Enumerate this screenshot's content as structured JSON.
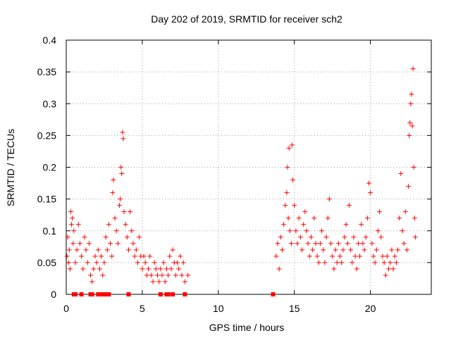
{
  "chart_data": {
    "type": "scatter",
    "title": "Day 202 of 2019, SRMTID for receiver sch2",
    "xlabel": "GPS time / hours",
    "ylabel": "SRMTID / TECUs",
    "xlim": [
      0,
      24
    ],
    "ylim": [
      0,
      0.4
    ],
    "x_ticks": [
      {
        "value": 0,
        "label": "0"
      },
      {
        "value": 5,
        "label": "5"
      },
      {
        "value": 10,
        "label": "10"
      },
      {
        "value": 15,
        "label": "15"
      },
      {
        "value": 20,
        "label": "20"
      }
    ],
    "y_ticks": [
      {
        "value": 0,
        "label": "0"
      },
      {
        "value": 0.05,
        "label": "0.05"
      },
      {
        "value": 0.1,
        "label": "0.1"
      },
      {
        "value": 0.15,
        "label": "0.15"
      },
      {
        "value": 0.2,
        "label": "0.2"
      },
      {
        "value": 0.25,
        "label": "0.25"
      },
      {
        "value": 0.3,
        "label": "0.3"
      },
      {
        "value": 0.35,
        "label": "0.35"
      },
      {
        "value": 0.4,
        "label": "0.4"
      }
    ],
    "grid": true,
    "marker": "+",
    "color": "#ff0000",
    "series": [
      {
        "name": "SRMTID",
        "points": [
          [
            0.05,
            0.06
          ],
          [
            0.1,
            0.09
          ],
          [
            0.15,
            0.05
          ],
          [
            0.2,
            0.07
          ],
          [
            0.25,
            0.04
          ],
          [
            0.3,
            0.13
          ],
          [
            0.35,
            0.11
          ],
          [
            0.4,
            0.12
          ],
          [
            0.45,
            0.08
          ],
          [
            0.5,
            0.1
          ],
          [
            0.6,
            0.05
          ],
          [
            0.7,
            0.07
          ],
          [
            0.8,
            0.11
          ],
          [
            0.9,
            0.08
          ],
          [
            1.0,
            0.06
          ],
          [
            1.1,
            0.04
          ],
          [
            1.2,
            0.09
          ],
          [
            1.3,
            0.07
          ],
          [
            1.4,
            0.05
          ],
          [
            1.5,
            0.08
          ],
          [
            1.6,
            0.03
          ],
          [
            1.7,
            0.02
          ],
          [
            1.8,
            0.04
          ],
          [
            1.9,
            0.06
          ],
          [
            2.0,
            0.05
          ],
          [
            2.1,
            0.07
          ],
          [
            2.2,
            0.04
          ],
          [
            2.3,
            0.06
          ],
          [
            2.4,
            0.03
          ],
          [
            2.5,
            0.05
          ],
          [
            2.6,
            0.09
          ],
          [
            2.7,
            0.07
          ],
          [
            2.8,
            0.11
          ],
          [
            2.9,
            0.08
          ],
          [
            3.0,
            0.06
          ],
          [
            3.05,
            0.16
          ],
          [
            3.1,
            0.18
          ],
          [
            3.2,
            0.12
          ],
          [
            3.3,
            0.1
          ],
          [
            3.4,
            0.08
          ],
          [
            3.5,
            0.14
          ],
          [
            3.55,
            0.15
          ],
          [
            3.6,
            0.2
          ],
          [
            3.65,
            0.19
          ],
          [
            3.7,
            0.255
          ],
          [
            3.75,
            0.245
          ],
          [
            3.8,
            0.13
          ],
          [
            3.9,
            0.11
          ],
          [
            4.0,
            0.09
          ],
          [
            4.1,
            0.07
          ],
          [
            4.2,
            0.13
          ],
          [
            4.3,
            0.1
          ],
          [
            4.4,
            0.08
          ],
          [
            4.5,
            0.06
          ],
          [
            4.6,
            0.07
          ],
          [
            4.7,
            0.05
          ],
          [
            4.8,
            0.09
          ],
          [
            4.9,
            0.06
          ],
          [
            5.0,
            0.04
          ],
          [
            5.1,
            0.06
          ],
          [
            5.2,
            0.05
          ],
          [
            5.3,
            0.03
          ],
          [
            5.4,
            0.04
          ],
          [
            5.5,
            0.06
          ],
          [
            5.6,
            0.03
          ],
          [
            5.7,
            0.02
          ],
          [
            5.8,
            0.05
          ],
          [
            5.9,
            0.04
          ],
          [
            6.0,
            0.03
          ],
          [
            6.1,
            0.02
          ],
          [
            6.2,
            0.04
          ],
          [
            6.3,
            0.03
          ],
          [
            6.4,
            0.05
          ],
          [
            6.5,
            0.02
          ],
          [
            6.6,
            0.04
          ],
          [
            6.7,
            0.03
          ],
          [
            6.8,
            0.06
          ],
          [
            6.9,
            0.04
          ],
          [
            7.0,
            0.07
          ],
          [
            7.1,
            0.05
          ],
          [
            7.2,
            0.03
          ],
          [
            7.3,
            0.05
          ],
          [
            7.4,
            0.04
          ],
          [
            7.5,
            0.06
          ],
          [
            7.6,
            0.03
          ],
          [
            7.7,
            0.05
          ],
          [
            7.8,
            0.02
          ],
          [
            8.0,
            0.03
          ],
          [
            13.8,
            0.06
          ],
          [
            13.9,
            0.08
          ],
          [
            14.0,
            0.04
          ],
          [
            14.1,
            0.09
          ],
          [
            14.2,
            0.07
          ],
          [
            14.3,
            0.11
          ],
          [
            14.4,
            0.14
          ],
          [
            14.5,
            0.16
          ],
          [
            14.55,
            0.2
          ],
          [
            14.6,
            0.12
          ],
          [
            14.65,
            0.23
          ],
          [
            14.7,
            0.1
          ],
          [
            14.8,
            0.08
          ],
          [
            14.85,
            0.235
          ],
          [
            14.9,
            0.18
          ],
          [
            15.0,
            0.14
          ],
          [
            15.1,
            0.1
          ],
          [
            15.2,
            0.08
          ],
          [
            15.3,
            0.12
          ],
          [
            15.4,
            0.09
          ],
          [
            15.5,
            0.07
          ],
          [
            15.6,
            0.11
          ],
          [
            15.7,
            0.13
          ],
          [
            15.8,
            0.1
          ],
          [
            15.9,
            0.08
          ],
          [
            16.0,
            0.06
          ],
          [
            16.1,
            0.09
          ],
          [
            16.2,
            0.07
          ],
          [
            16.3,
            0.12
          ],
          [
            16.4,
            0.08
          ],
          [
            16.5,
            0.06
          ],
          [
            16.6,
            0.05
          ],
          [
            16.7,
            0.08
          ],
          [
            16.8,
            0.1
          ],
          [
            16.9,
            0.07
          ],
          [
            17.0,
            0.05
          ],
          [
            17.1,
            0.09
          ],
          [
            17.2,
            0.12
          ],
          [
            17.3,
            0.15
          ],
          [
            17.4,
            0.08
          ],
          [
            17.5,
            0.06
          ],
          [
            17.6,
            0.04
          ],
          [
            17.7,
            0.07
          ],
          [
            17.8,
            0.05
          ],
          [
            17.9,
            0.08
          ],
          [
            18.0,
            0.06
          ],
          [
            18.1,
            0.05
          ],
          [
            18.2,
            0.07
          ],
          [
            18.3,
            0.09
          ],
          [
            18.4,
            0.11
          ],
          [
            18.5,
            0.08
          ],
          [
            18.6,
            0.14
          ],
          [
            18.7,
            0.07
          ],
          [
            18.8,
            0.05
          ],
          [
            18.9,
            0.09
          ],
          [
            19.0,
            0.06
          ],
          [
            19.1,
            0.04
          ],
          [
            19.2,
            0.08
          ],
          [
            19.3,
            0.06
          ],
          [
            19.4,
            0.11
          ],
          [
            19.5,
            0.08
          ],
          [
            19.6,
            0.07
          ],
          [
            19.7,
            0.09
          ],
          [
            19.8,
            0.12
          ],
          [
            19.9,
            0.175
          ],
          [
            20.0,
            0.16
          ],
          [
            20.1,
            0.08
          ],
          [
            20.2,
            0.06
          ],
          [
            20.3,
            0.05
          ],
          [
            20.4,
            0.07
          ],
          [
            20.5,
            0.1
          ],
          [
            20.6,
            0.13
          ],
          [
            20.7,
            0.09
          ],
          [
            20.8,
            0.06
          ],
          [
            20.9,
            0.05
          ],
          [
            21.0,
            0.03
          ],
          [
            21.1,
            0.06
          ],
          [
            21.2,
            0.04
          ],
          [
            21.3,
            0.05
          ],
          [
            21.4,
            0.07
          ],
          [
            21.5,
            0.04
          ],
          [
            21.6,
            0.06
          ],
          [
            21.7,
            0.05
          ],
          [
            21.8,
            0.07
          ],
          [
            21.9,
            0.12
          ],
          [
            22.0,
            0.19
          ],
          [
            22.1,
            0.1
          ],
          [
            22.2,
            0.08
          ],
          [
            22.3,
            0.13
          ],
          [
            22.4,
            0.07
          ],
          [
            22.5,
            0.17
          ],
          [
            22.55,
            0.25
          ],
          [
            22.6,
            0.27
          ],
          [
            22.65,
            0.3
          ],
          [
            22.7,
            0.315
          ],
          [
            22.75,
            0.265
          ],
          [
            22.8,
            0.355
          ],
          [
            22.85,
            0.2
          ],
          [
            22.9,
            0.12
          ],
          [
            22.95,
            0.09
          ]
        ]
      }
    ],
    "baseline_marks_x": [
      0.5,
      0.6,
      1.0,
      1.6,
      1.7,
      2.1,
      2.3,
      2.4,
      2.5,
      2.6,
      2.8,
      4.1,
      6.2,
      6.6,
      6.7,
      7.0,
      7.8,
      13.6
    ]
  }
}
